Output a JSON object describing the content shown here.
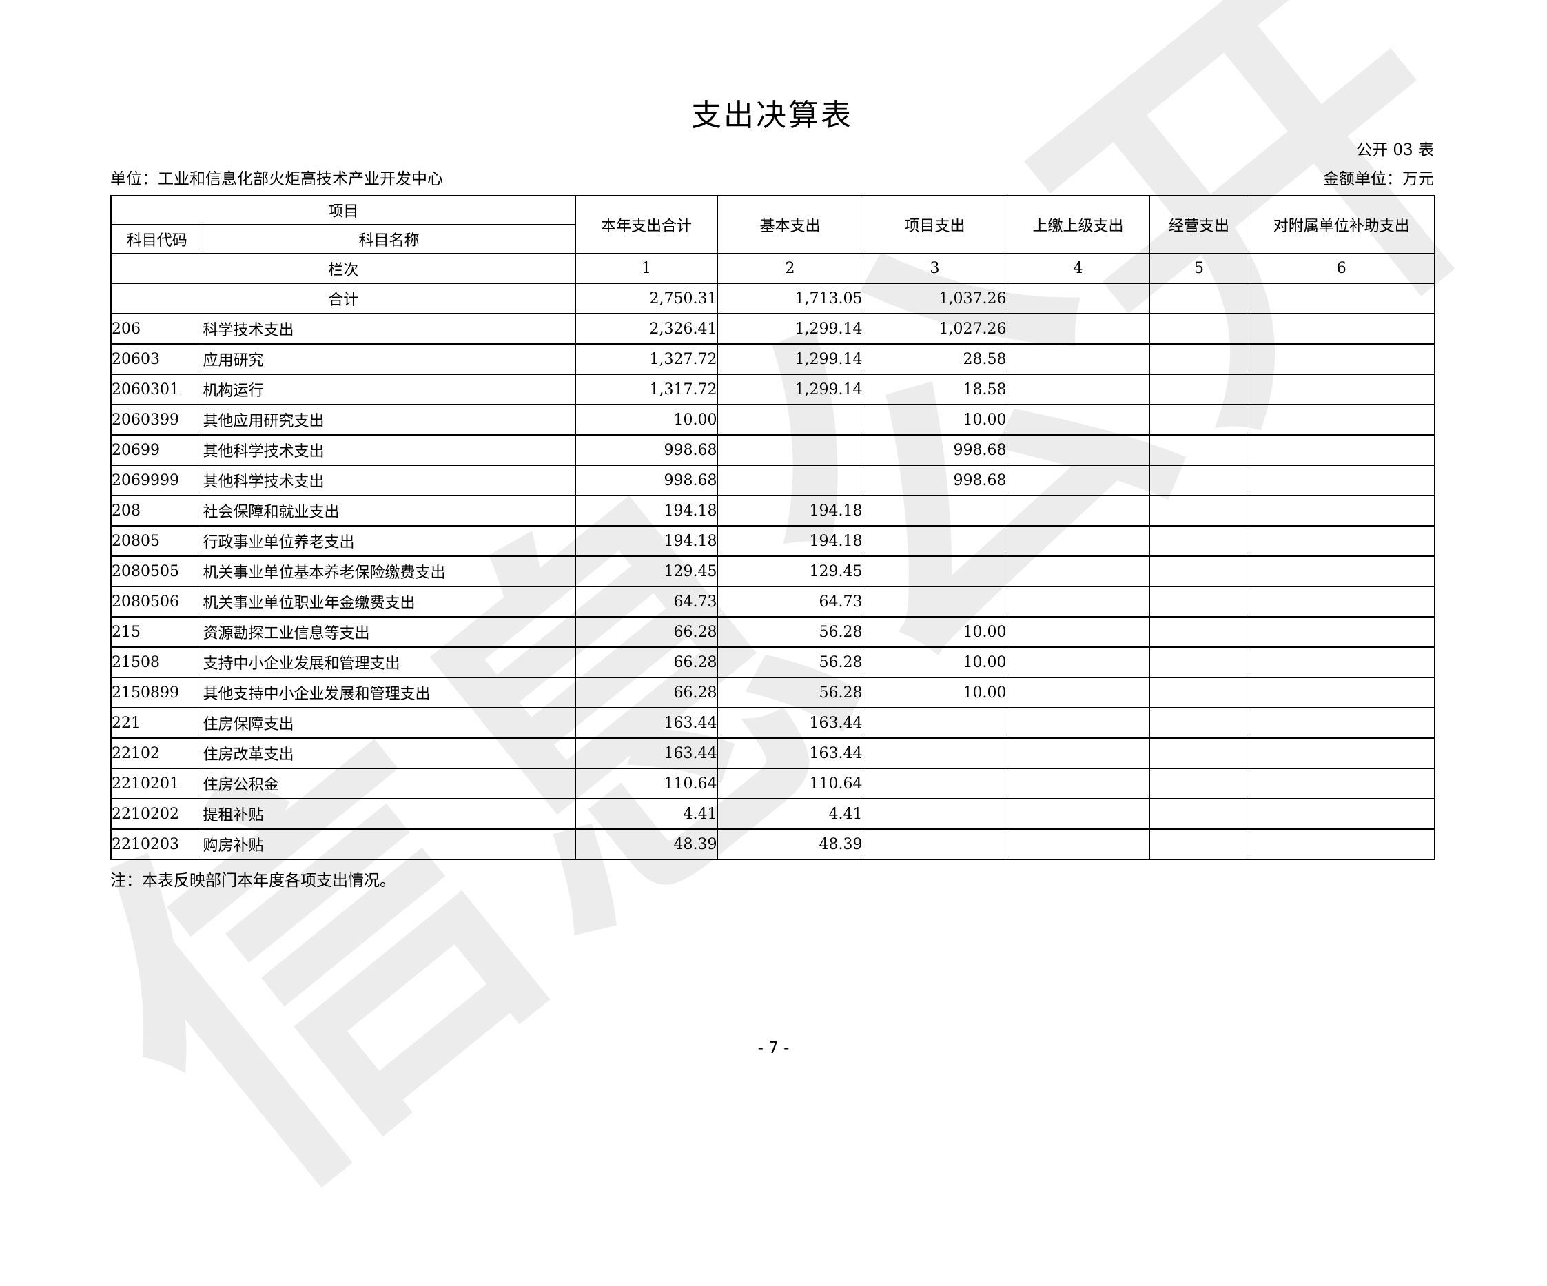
{
  "page": {
    "title": "支出决算表",
    "table_number": "公开 03 表",
    "unit_label": "单位：工业和信息化部火炬高技术产业开发中心",
    "amount_unit_label": "金额单位：万元",
    "note": "注：本表反映部门本年度各项支出情况。",
    "page_number": "- 7 -",
    "watermark": "信息公开"
  },
  "table": {
    "header": {
      "project_group": "项目",
      "code": "科目代码",
      "name": "科目名称",
      "columns": [
        "本年支出合计",
        "基本支出",
        "项目支出",
        "上缴上级支出",
        "经营支出",
        "对附属单位补助支出"
      ],
      "lanci_label": "栏次",
      "column_indexes": [
        "1",
        "2",
        "3",
        "4",
        "5",
        "6"
      ]
    },
    "total_row": {
      "label": "合计",
      "values": [
        "2,750.31",
        "1,713.05",
        "1,037.26",
        "",
        "",
        ""
      ]
    },
    "rows": [
      {
        "code": "206",
        "name": "科学技术支出",
        "values": [
          "2,326.41",
          "1,299.14",
          "1,027.26",
          "",
          "",
          ""
        ]
      },
      {
        "code": "20603",
        "name": "应用研究",
        "values": [
          "1,327.72",
          "1,299.14",
          "28.58",
          "",
          "",
          ""
        ]
      },
      {
        "code": "2060301",
        "name": "机构运行",
        "values": [
          "1,317.72",
          "1,299.14",
          "18.58",
          "",
          "",
          ""
        ]
      },
      {
        "code": "2060399",
        "name": "其他应用研究支出",
        "values": [
          "10.00",
          "",
          "10.00",
          "",
          "",
          ""
        ]
      },
      {
        "code": "20699",
        "name": "其他科学技术支出",
        "values": [
          "998.68",
          "",
          "998.68",
          "",
          "",
          ""
        ]
      },
      {
        "code": "2069999",
        "name": "其他科学技术支出",
        "values": [
          "998.68",
          "",
          "998.68",
          "",
          "",
          ""
        ]
      },
      {
        "code": "208",
        "name": "社会保障和就业支出",
        "values": [
          "194.18",
          "194.18",
          "",
          "",
          "",
          ""
        ]
      },
      {
        "code": "20805",
        "name": "行政事业单位养老支出",
        "values": [
          "194.18",
          "194.18",
          "",
          "",
          "",
          ""
        ]
      },
      {
        "code": "2080505",
        "name": "机关事业单位基本养老保险缴费支出",
        "values": [
          "129.45",
          "129.45",
          "",
          "",
          "",
          ""
        ]
      },
      {
        "code": "2080506",
        "name": "机关事业单位职业年金缴费支出",
        "values": [
          "64.73",
          "64.73",
          "",
          "",
          "",
          ""
        ]
      },
      {
        "code": "215",
        "name": "资源勘探工业信息等支出",
        "values": [
          "66.28",
          "56.28",
          "10.00",
          "",
          "",
          ""
        ]
      },
      {
        "code": "21508",
        "name": "支持中小企业发展和管理支出",
        "values": [
          "66.28",
          "56.28",
          "10.00",
          "",
          "",
          ""
        ]
      },
      {
        "code": "2150899",
        "name": "其他支持中小企业发展和管理支出",
        "values": [
          "66.28",
          "56.28",
          "10.00",
          "",
          "",
          ""
        ]
      },
      {
        "code": "221",
        "name": "住房保障支出",
        "values": [
          "163.44",
          "163.44",
          "",
          "",
          "",
          ""
        ]
      },
      {
        "code": "22102",
        "name": "住房改革支出",
        "values": [
          "163.44",
          "163.44",
          "",
          "",
          "",
          ""
        ]
      },
      {
        "code": "2210201",
        "name": "住房公积金",
        "values": [
          "110.64",
          "110.64",
          "",
          "",
          "",
          ""
        ]
      },
      {
        "code": "2210202",
        "name": "提租补贴",
        "values": [
          "4.41",
          "4.41",
          "",
          "",
          "",
          ""
        ]
      },
      {
        "code": "2210203",
        "name": "购房补贴",
        "values": [
          "48.39",
          "48.39",
          "",
          "",
          "",
          ""
        ]
      }
    ]
  }
}
